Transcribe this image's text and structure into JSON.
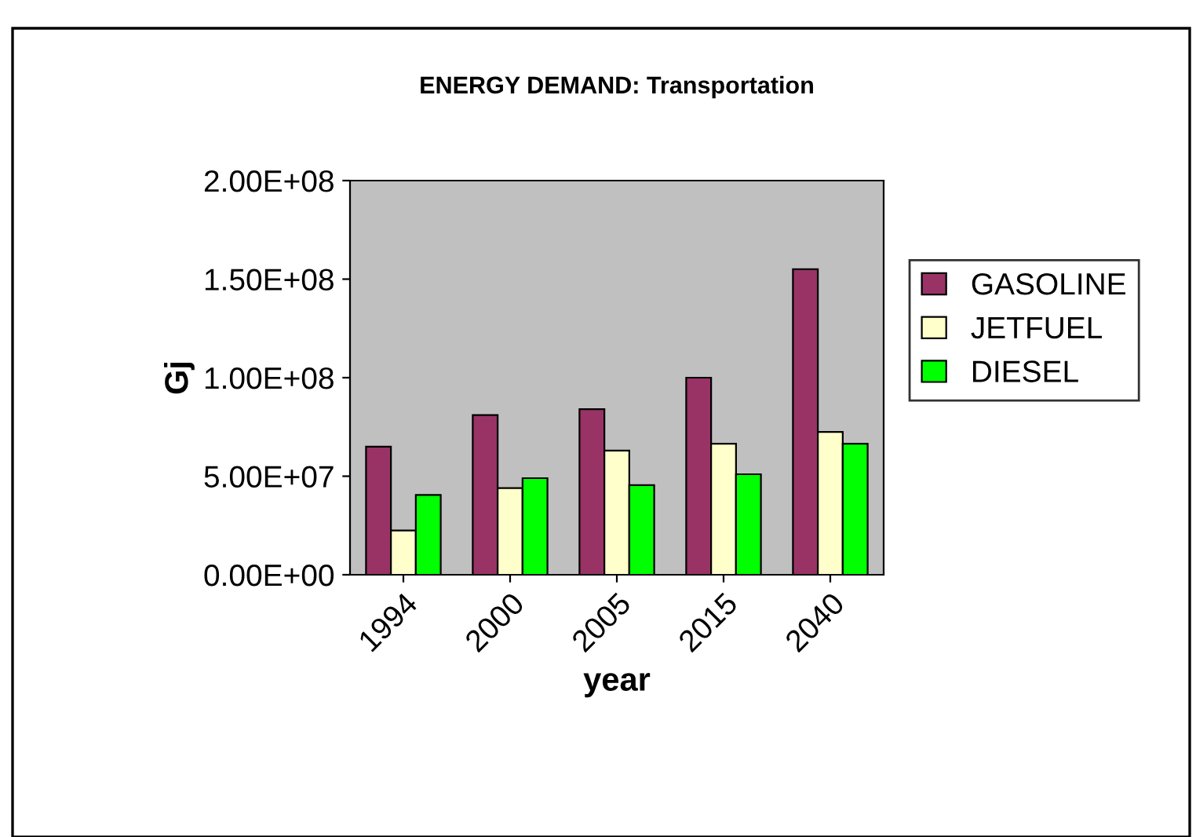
{
  "chart_data": {
    "type": "bar",
    "title": "ENERGY DEMAND: Transportation",
    "xlabel": "year",
    "ylabel": "Gj",
    "categories": [
      "1994",
      "2000",
      "2005",
      "2015",
      "2040"
    ],
    "series": [
      {
        "name": "GASOLINE",
        "color": "#993366",
        "values": [
          65000000,
          81000000,
          84000000,
          100000000,
          155000000
        ]
      },
      {
        "name": "JETFUEL",
        "color": "#ffffcc",
        "values": [
          22500000,
          44000000,
          63000000,
          66500000,
          72500000
        ]
      },
      {
        "name": "DIESEL",
        "color": "#00ff00",
        "values": [
          40500000,
          49000000,
          45500000,
          51000000,
          66500000
        ]
      }
    ],
    "ylim": [
      0,
      200000000
    ],
    "yticks": [
      {
        "value": 0,
        "label": "0.00E+00"
      },
      {
        "value": 50000000,
        "label": "5.00E+07"
      },
      {
        "value": 100000000,
        "label": "1.00E+08"
      },
      {
        "value": 150000000,
        "label": "1.50E+08"
      },
      {
        "value": 200000000,
        "label": "2.00E+08"
      }
    ],
    "grid": false,
    "legend": "right"
  }
}
